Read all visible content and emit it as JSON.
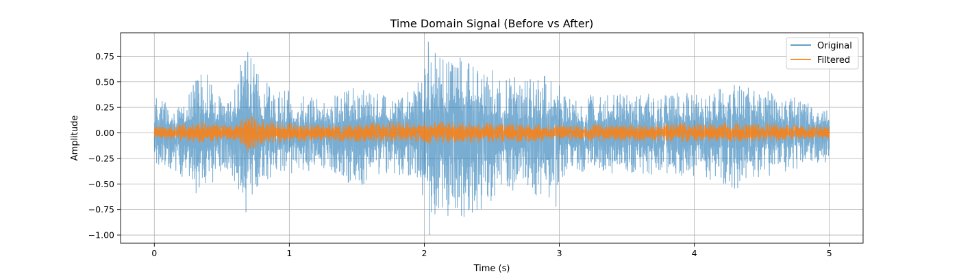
{
  "chart_data": {
    "type": "line",
    "title": "Time Domain Signal (Before vs After)",
    "xlabel": "Time (s)",
    "ylabel": "Amplitude",
    "xlim": [
      -0.25,
      5.25
    ],
    "ylim": [
      -1.08,
      0.98
    ],
    "xticks": [
      0,
      1,
      2,
      3,
      4,
      5
    ],
    "xtick_labels": [
      "0",
      "1",
      "2",
      "3",
      "4",
      "5"
    ],
    "yticks": [
      -1.0,
      -0.75,
      -0.5,
      -0.25,
      0.0,
      0.25,
      0.5,
      0.75
    ],
    "ytick_labels": [
      "−1.00",
      "−0.75",
      "−0.50",
      "−0.25",
      "0.00",
      "0.25",
      "0.50",
      "0.75"
    ],
    "grid": true,
    "legend_position": "top-right",
    "series": [
      {
        "name": "Original",
        "color": "#1f77b4",
        "opacity": 0.6,
        "time_range": [
          0,
          5
        ],
        "peak_max": 0.89,
        "peak_min": -1.0,
        "envelope": [
          {
            "t": 0.0,
            "pos": 0.36,
            "neg": -0.3
          },
          {
            "t": 0.15,
            "pos": 0.3,
            "neg": -0.4
          },
          {
            "t": 0.25,
            "pos": 0.4,
            "neg": -0.48
          },
          {
            "t": 0.35,
            "pos": 0.75,
            "neg": -0.67
          },
          {
            "t": 0.45,
            "pos": 0.4,
            "neg": -0.45
          },
          {
            "t": 0.55,
            "pos": 0.3,
            "neg": -0.35
          },
          {
            "t": 0.68,
            "pos": 0.85,
            "neg": -0.78
          },
          {
            "t": 0.78,
            "pos": 0.55,
            "neg": -0.48
          },
          {
            "t": 0.9,
            "pos": 0.45,
            "neg": -0.45
          },
          {
            "t": 1.05,
            "pos": 0.4,
            "neg": -0.38
          },
          {
            "t": 1.3,
            "pos": 0.35,
            "neg": -0.35
          },
          {
            "t": 1.5,
            "pos": 0.45,
            "neg": -0.55
          },
          {
            "t": 1.75,
            "pos": 0.35,
            "neg": -0.4
          },
          {
            "t": 1.95,
            "pos": 0.5,
            "neg": -0.45
          },
          {
            "t": 2.03,
            "pos": 0.85,
            "neg": -0.85
          },
          {
            "t": 2.15,
            "pos": 0.72,
            "neg": -0.8
          },
          {
            "t": 2.25,
            "pos": 0.8,
            "neg": -0.85
          },
          {
            "t": 2.4,
            "pos": 0.78,
            "neg": -0.8
          },
          {
            "t": 2.55,
            "pos": 0.55,
            "neg": -0.6
          },
          {
            "t": 2.75,
            "pos": 0.55,
            "neg": -0.55
          },
          {
            "t": 2.95,
            "pos": 0.6,
            "neg": -0.85
          },
          {
            "t": 3.05,
            "pos": 0.35,
            "neg": -0.4
          },
          {
            "t": 3.4,
            "pos": 0.4,
            "neg": -0.4
          },
          {
            "t": 3.8,
            "pos": 0.38,
            "neg": -0.42
          },
          {
            "t": 4.1,
            "pos": 0.42,
            "neg": -0.45
          },
          {
            "t": 4.3,
            "pos": 0.48,
            "neg": -0.55
          },
          {
            "t": 4.6,
            "pos": 0.4,
            "neg": -0.4
          },
          {
            "t": 5.0,
            "pos": 0.25,
            "neg": -0.28
          }
        ]
      },
      {
        "name": "Filtered",
        "color": "#ff7f0e",
        "opacity": 0.85,
        "time_range": [
          0,
          5
        ],
        "envelope": [
          {
            "t": 0.0,
            "pos": 0.06,
            "neg": -0.06
          },
          {
            "t": 0.35,
            "pos": 0.11,
            "neg": -0.1
          },
          {
            "t": 0.6,
            "pos": 0.07,
            "neg": -0.07
          },
          {
            "t": 0.68,
            "pos": 0.18,
            "neg": -0.2
          },
          {
            "t": 0.8,
            "pos": 0.12,
            "neg": -0.11
          },
          {
            "t": 1.2,
            "pos": 0.08,
            "neg": -0.08
          },
          {
            "t": 2.05,
            "pos": 0.12,
            "neg": -0.1
          },
          {
            "t": 2.4,
            "pos": 0.1,
            "neg": -0.1
          },
          {
            "t": 3.0,
            "pos": 0.08,
            "neg": -0.08
          },
          {
            "t": 4.4,
            "pos": 0.1,
            "neg": -0.09
          },
          {
            "t": 5.0,
            "pos": 0.06,
            "neg": -0.06
          }
        ]
      }
    ]
  }
}
